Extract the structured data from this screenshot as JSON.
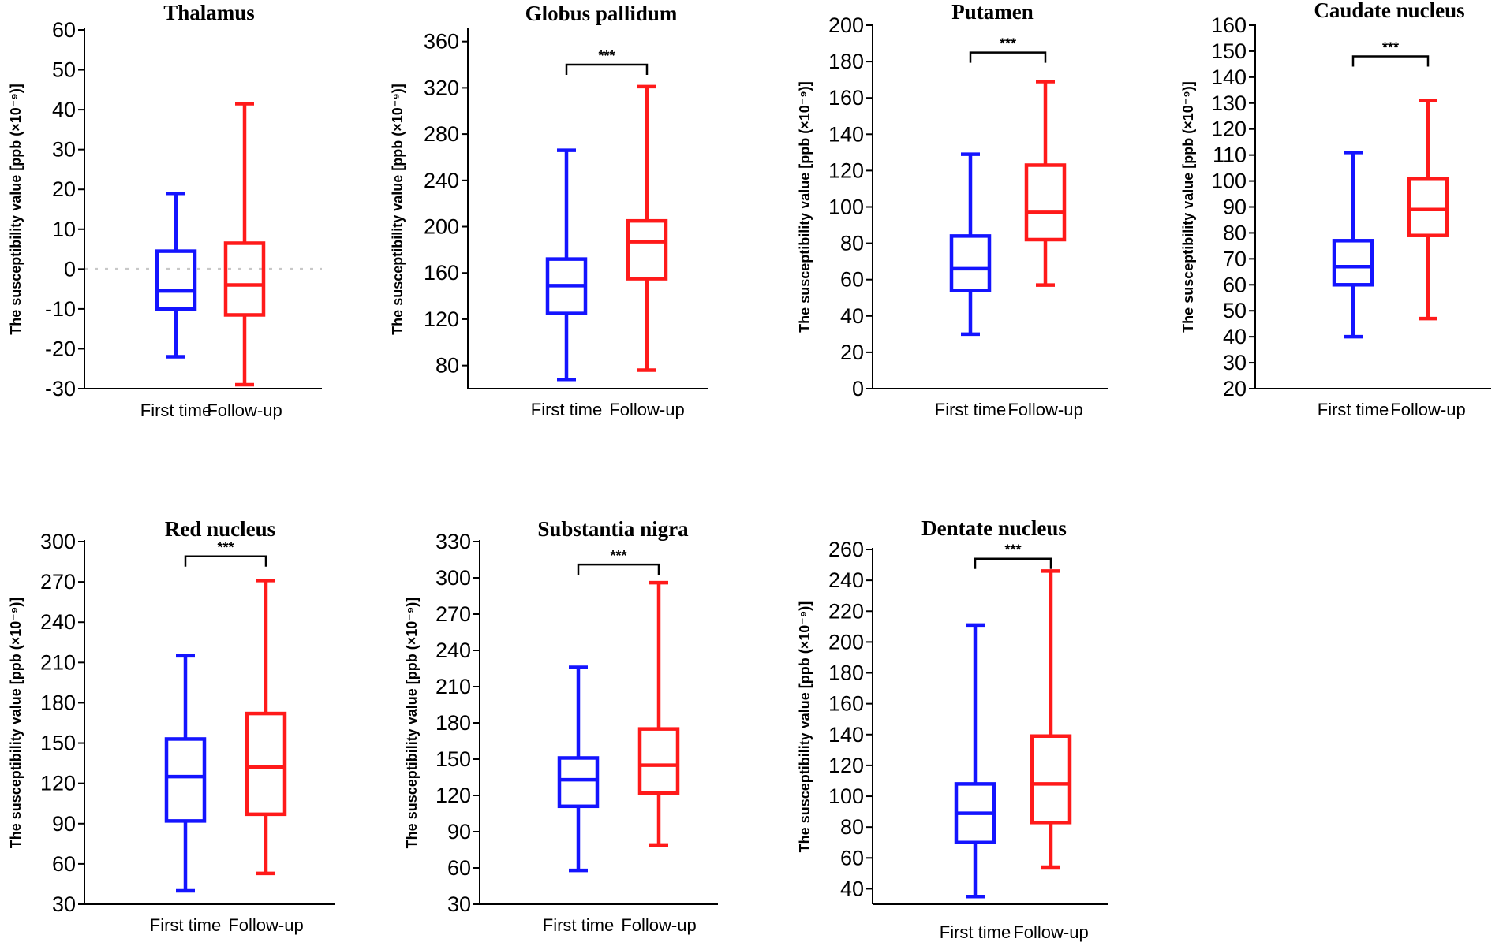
{
  "colors": {
    "first_time": "#1414ff",
    "follow_up": "#ff1a1a",
    "axis": "#000000",
    "zero_line": "#c8c8c8"
  },
  "chart_data": [
    {
      "type": "box",
      "title": "Thalamus",
      "ylabel": "The susceptibility value [ppb (×10⁻⁹)]",
      "ylim": [
        -30,
        60
      ],
      "yticks": [
        -30,
        -20,
        -10,
        0,
        10,
        20,
        30,
        40,
        50,
        60
      ],
      "categories": [
        "First time",
        "Follow-up"
      ],
      "zero_line": true,
      "significance": null,
      "series": [
        {
          "name": "First time",
          "min": -22,
          "q1": -10,
          "median": -5.5,
          "q3": 4.5,
          "max": 19
        },
        {
          "name": "Follow-up",
          "min": -29,
          "q1": -11.5,
          "median": -4,
          "q3": 6.5,
          "max": 41.5
        }
      ]
    },
    {
      "type": "box",
      "title": "Globus pallidum",
      "ylabel": "The susceptibility value [ppb (×10⁻⁹)]",
      "ylim": [
        60,
        370
      ],
      "yticks": [
        80,
        120,
        160,
        200,
        240,
        280,
        320,
        360
      ],
      "categories": [
        "First time",
        "Follow-up"
      ],
      "zero_line": false,
      "significance": "***",
      "sig_level": 340,
      "series": [
        {
          "name": "First time",
          "min": 68,
          "q1": 125,
          "median": 149,
          "q3": 172,
          "max": 266
        },
        {
          "name": "Follow-up",
          "min": 76,
          "q1": 155,
          "median": 187,
          "q3": 205,
          "max": 321
        }
      ]
    },
    {
      "type": "box",
      "title": "Putamen",
      "ylabel": "The susceptibility value [ppb (×10⁻⁹)]",
      "ylim": [
        0,
        200
      ],
      "yticks": [
        0,
        20,
        40,
        60,
        80,
        100,
        120,
        140,
        160,
        180,
        200
      ],
      "categories": [
        "First time",
        "Follow-up"
      ],
      "zero_line": false,
      "significance": "***",
      "sig_level": 185,
      "series": [
        {
          "name": "First time",
          "min": 30,
          "q1": 54,
          "median": 66,
          "q3": 84,
          "max": 129
        },
        {
          "name": "Follow-up",
          "min": 57,
          "q1": 82,
          "median": 97,
          "q3": 123,
          "max": 169
        }
      ]
    },
    {
      "type": "box",
      "title": "Caudate nucleus",
      "ylabel": "The susceptibility value [ppb (×10⁻⁹)]",
      "ylim": [
        20,
        160
      ],
      "yticks": [
        20,
        30,
        40,
        50,
        60,
        70,
        80,
        90,
        100,
        110,
        120,
        130,
        140,
        150,
        160
      ],
      "categories": [
        "First time",
        "Follow-up"
      ],
      "zero_line": false,
      "significance": "***",
      "sig_level": 148,
      "series": [
        {
          "name": "First time",
          "min": 40,
          "q1": 60,
          "median": 67,
          "q3": 77,
          "max": 111
        },
        {
          "name": "Follow-up",
          "min": 47,
          "q1": 79,
          "median": 89,
          "q3": 101,
          "max": 131
        }
      ]
    },
    {
      "type": "box",
      "title": "Red nucleus",
      "ylabel": "The susceptibility value [ppb (×10⁻⁹)]",
      "ylim": [
        30,
        300
      ],
      "yticks": [
        30,
        60,
        90,
        120,
        150,
        180,
        210,
        240,
        270,
        300
      ],
      "categories": [
        "First time",
        "Follow-up"
      ],
      "zero_line": false,
      "significance": "***",
      "sig_level": 289,
      "series": [
        {
          "name": "First time",
          "min": 40,
          "q1": 92,
          "median": 125,
          "q3": 153,
          "max": 215
        },
        {
          "name": "Follow-up",
          "min": 53,
          "q1": 97,
          "median": 132,
          "q3": 172,
          "max": 271
        }
      ]
    },
    {
      "type": "box",
      "title": "Substantia nigra",
      "ylabel": "The susceptibility value [ppb (×10⁻⁹)]",
      "ylim": [
        30,
        330
      ],
      "yticks": [
        30,
        60,
        90,
        120,
        150,
        180,
        210,
        240,
        270,
        300,
        330
      ],
      "categories": [
        "First time",
        "Follow-up"
      ],
      "zero_line": false,
      "significance": "***",
      "sig_level": 311,
      "series": [
        {
          "name": "First time",
          "min": 58,
          "q1": 111,
          "median": 133,
          "q3": 151,
          "max": 226
        },
        {
          "name": "Follow-up",
          "min": 79,
          "q1": 122,
          "median": 145,
          "q3": 175,
          "max": 296
        }
      ]
    },
    {
      "type": "box",
      "title": "Dentate nucleus",
      "ylabel": "The susceptibility value [ppb (×10⁻⁹)]",
      "ylim": [
        30,
        260
      ],
      "yticks": [
        40,
        60,
        80,
        100,
        120,
        140,
        160,
        180,
        200,
        220,
        240,
        260
      ],
      "categories": [
        "First time",
        "Follow-up"
      ],
      "zero_line": false,
      "significance": "***",
      "sig_level": 254,
      "series": [
        {
          "name": "First time",
          "min": 35,
          "q1": 70,
          "median": 89,
          "q3": 108,
          "max": 211
        },
        {
          "name": "Follow-up",
          "min": 54,
          "q1": 83,
          "median": 108,
          "q3": 139,
          "max": 246
        }
      ]
    }
  ]
}
